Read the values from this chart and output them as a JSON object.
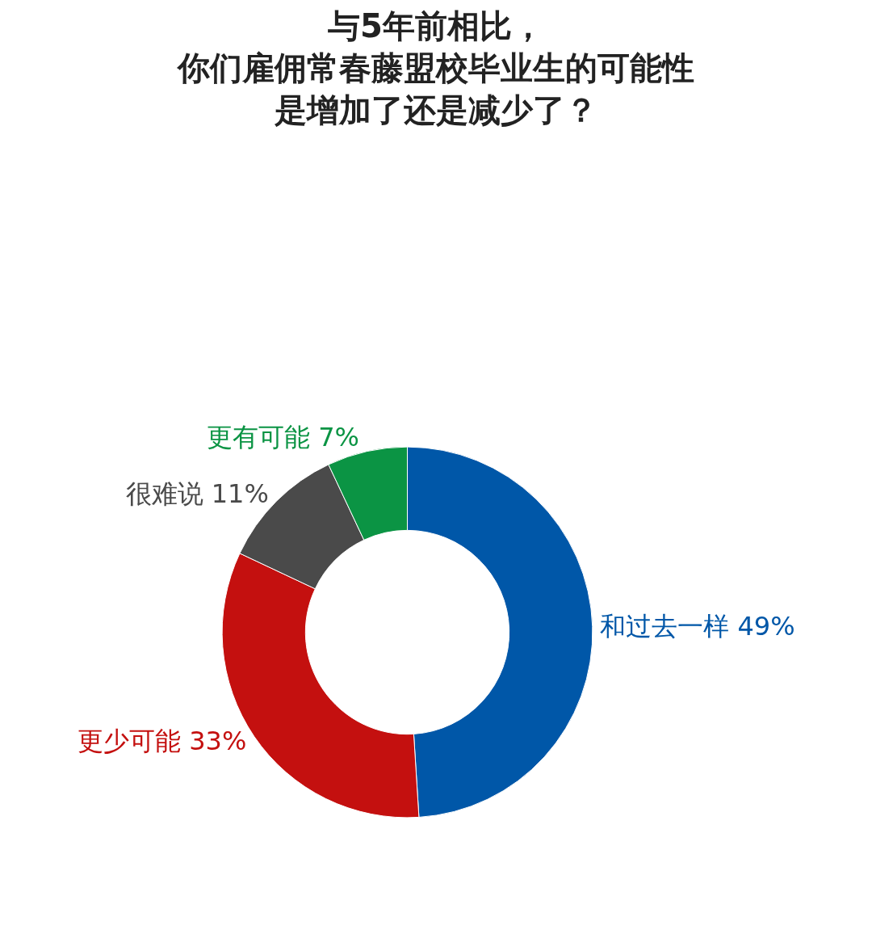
{
  "chart_data": {
    "type": "donut",
    "title": "与5年前相比，你们雇佣常春藤盟校毕业生的可能性是增加了还是减少了？",
    "categories": [
      "和过去一样",
      "更少可能",
      "很难说",
      "更有可能"
    ],
    "values": [
      49,
      33,
      11,
      7
    ],
    "value_labels": [
      "49%",
      "33%",
      "11%",
      "7%"
    ],
    "colors": [
      "#0057a8",
      "#c4100f",
      "#4a4a4a",
      "#0b9444"
    ],
    "legend": false
  }
}
